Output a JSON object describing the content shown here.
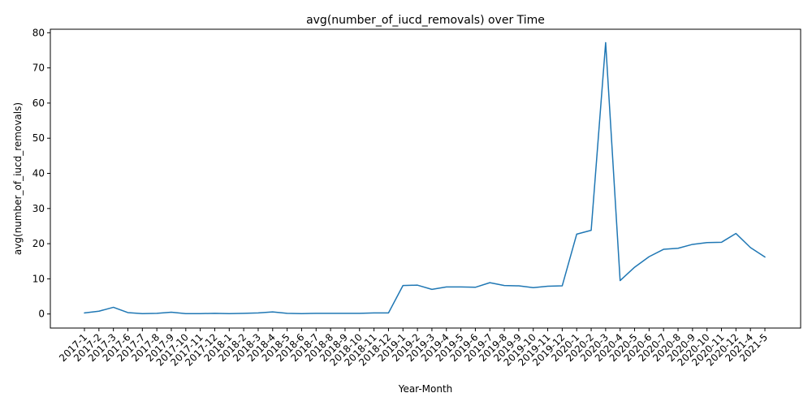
{
  "chart_data": {
    "type": "line",
    "title": "avg(number_of_iucd_removals) over Time",
    "xlabel": "Year-Month",
    "ylabel": "avg(number_of_iucd_removals)",
    "ylim": [
      -4,
      81
    ],
    "yticks": [
      0,
      10,
      20,
      30,
      40,
      50,
      60,
      70,
      80
    ],
    "grid": false,
    "legend": "none",
    "line_color": "#1f77b4",
    "categories": [
      "2017-1",
      "2017-2",
      "2017-3",
      "2017-6",
      "2017-7",
      "2017-8",
      "2017-9",
      "2017-10",
      "2017-11",
      "2017-12",
      "2018-1",
      "2018-2",
      "2018-3",
      "2018-4",
      "2018-5",
      "2018-6",
      "2018-7",
      "2018-8",
      "2018-9",
      "2018-10",
      "2018-11",
      "2018-12",
      "2019-1",
      "2019-2",
      "2019-3",
      "2019-4",
      "2019-5",
      "2019-6",
      "2019-7",
      "2019-8",
      "2019-9",
      "2019-10",
      "2019-11",
      "2019-12",
      "2020-1",
      "2020-2",
      "2020-3",
      "2020-4",
      "2020-5",
      "2020-6",
      "2020-7",
      "2020-8",
      "2020-9",
      "2020-10",
      "2020-11",
      "2020-12",
      "2021-4",
      "2021-5"
    ],
    "values": [
      0.3,
      0.8,
      1.9,
      0.4,
      0.1,
      0.2,
      0.5,
      0.1,
      0.1,
      0.2,
      0.1,
      0.2,
      0.3,
      0.6,
      0.2,
      0.1,
      0.2,
      0.2,
      0.2,
      0.2,
      0.3,
      0.3,
      8.1,
      8.2,
      7.0,
      7.7,
      7.7,
      7.6,
      8.9,
      8.1,
      8.0,
      7.5,
      7.9,
      8.0,
      22.7,
      23.8,
      77.2,
      9.5,
      13.3,
      16.3,
      18.4,
      18.7,
      19.8,
      20.3,
      20.4,
      22.9,
      18.9,
      16.2
    ]
  }
}
